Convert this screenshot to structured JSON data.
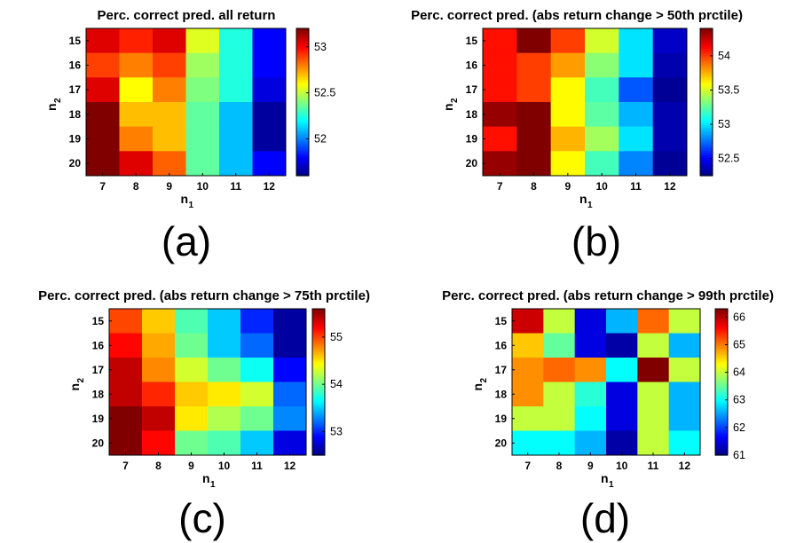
{
  "chart_data": [
    {
      "type": "heatmap",
      "title": "Perc. correct pred. all return",
      "panel_label": "(a)",
      "xlabel": "n",
      "xlabel_sub": "1",
      "ylabel": "n",
      "ylabel_sub": "2",
      "x_categories": [
        "7",
        "8",
        "9",
        "10",
        "11",
        "12"
      ],
      "y_categories": [
        "15",
        "16",
        "17",
        "18",
        "19",
        "20"
      ],
      "colorbar": {
        "min": 51.6,
        "max": 53.2,
        "ticks": [
          52,
          52.5,
          53
        ]
      },
      "values": [
        [
          53.05,
          52.95,
          53.05,
          52.55,
          52.25,
          51.8
        ],
        [
          52.9,
          52.8,
          52.9,
          52.45,
          52.25,
          51.8
        ],
        [
          53.05,
          52.6,
          52.8,
          52.4,
          52.25,
          51.75
        ],
        [
          53.2,
          52.7,
          52.7,
          52.35,
          52.1,
          51.65
        ],
        [
          53.2,
          52.8,
          52.7,
          52.35,
          52.1,
          51.65
        ],
        [
          53.2,
          53.05,
          52.85,
          52.35,
          52.1,
          51.8
        ]
      ]
    },
    {
      "type": "heatmap",
      "title": "Perc. correct pred. (abs return change > 50th prctile)",
      "panel_label": "(b)",
      "xlabel": "n",
      "xlabel_sub": "1",
      "ylabel": "n",
      "ylabel_sub": "2",
      "x_categories": [
        "7",
        "8",
        "9",
        "10",
        "11",
        "12"
      ],
      "y_categories": [
        "15",
        "16",
        "17",
        "18",
        "19",
        "20"
      ],
      "colorbar": {
        "min": 52.25,
        "max": 54.4,
        "ticks": [
          52.5,
          53,
          53.5,
          54
        ]
      },
      "values": [
        [
          54.1,
          54.4,
          54.0,
          53.5,
          53.0,
          52.4
        ],
        [
          54.1,
          54.0,
          53.8,
          53.35,
          53.0,
          52.35
        ],
        [
          54.1,
          54.0,
          53.6,
          53.2,
          52.7,
          52.3
        ],
        [
          54.35,
          54.4,
          53.6,
          53.25,
          52.9,
          52.35
        ],
        [
          54.1,
          54.4,
          53.75,
          53.4,
          53.0,
          52.35
        ],
        [
          54.35,
          54.4,
          53.6,
          53.2,
          52.8,
          52.3
        ]
      ]
    },
    {
      "type": "heatmap",
      "title": "Perc. correct pred. (abs return change > 75th prctile)",
      "panel_label": "(c)",
      "xlabel": "n",
      "xlabel_sub": "1",
      "ylabel": "n",
      "ylabel_sub": "2",
      "x_categories": [
        "7",
        "8",
        "9",
        "10",
        "11",
        "12"
      ],
      "y_categories": [
        "15",
        "16",
        "17",
        "18",
        "19",
        "20"
      ],
      "colorbar": {
        "min": 52.5,
        "max": 55.6,
        "ticks": [
          53,
          54,
          55
        ]
      },
      "values": [
        [
          55.0,
          54.6,
          53.9,
          53.5,
          53.0,
          52.6
        ],
        [
          55.2,
          54.7,
          54.0,
          53.5,
          53.2,
          52.6
        ],
        [
          55.4,
          54.8,
          54.3,
          54.0,
          53.7,
          52.9
        ],
        [
          55.4,
          55.1,
          54.6,
          54.5,
          54.3,
          53.2
        ],
        [
          55.6,
          55.4,
          54.5,
          54.2,
          54.0,
          53.3
        ],
        [
          55.6,
          55.2,
          54.0,
          53.9,
          53.5,
          52.8
        ]
      ]
    },
    {
      "type": "heatmap",
      "title": "Perc. correct pred. (abs return change > 99th prctile)",
      "panel_label": "(d)",
      "xlabel": "n",
      "xlabel_sub": "1",
      "ylabel": "n",
      "ylabel_sub": "2",
      "x_categories": [
        "7",
        "8",
        "9",
        "10",
        "11",
        "12"
      ],
      "y_categories": [
        "15",
        "16",
        "17",
        "18",
        "19",
        "20"
      ],
      "colorbar": {
        "min": 61.0,
        "max": 66.3,
        "ticks": [
          61,
          62,
          63,
          64,
          65,
          66
        ]
      },
      "values": [
        [
          65.9,
          64.0,
          61.5,
          62.6,
          65.1,
          64.0
        ],
        [
          64.6,
          63.5,
          61.5,
          61.2,
          64.0,
          62.6
        ],
        [
          64.9,
          65.1,
          64.9,
          63.0,
          66.3,
          64.0
        ],
        [
          64.9,
          64.0,
          63.2,
          61.5,
          64.0,
          62.6
        ],
        [
          64.0,
          64.0,
          63.0,
          61.5,
          64.0,
          62.6
        ],
        [
          63.0,
          63.0,
          62.6,
          61.2,
          64.0,
          63.0
        ]
      ]
    }
  ]
}
